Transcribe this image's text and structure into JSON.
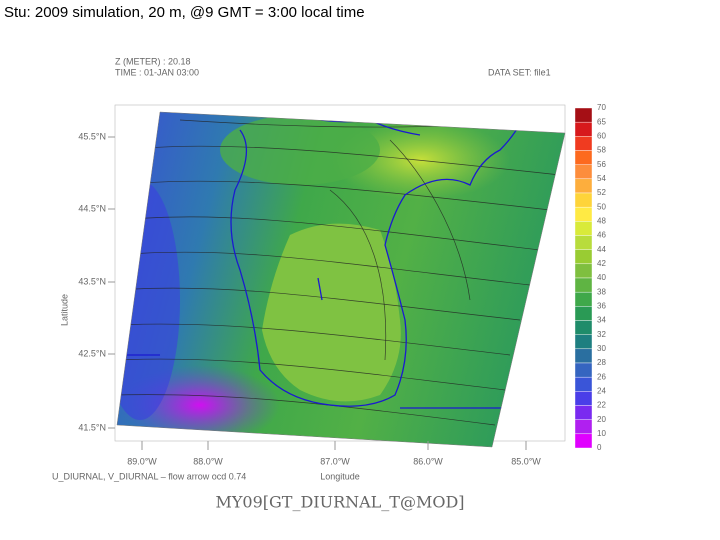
{
  "title": "Stu: 2009 simulation, 20 m, @9 GMT = 3:00 local time",
  "header": {
    "z_level": "Z (METER) : 20.18",
    "time": "TIME : 01-JAN 03:00",
    "dataset": "DATA SET: file1"
  },
  "axes": {
    "y_label": "Latitude",
    "x_label": "Longitude",
    "lat_labels": [
      "45.5°N",
      "44.5°N",
      "43.5°N",
      "42.5°N",
      "41.5°N"
    ],
    "lon_labels": [
      "89.0°W",
      "88.0°W",
      "87.0°W",
      "86.0°W",
      "85.0°W"
    ]
  },
  "colorbar": {
    "labels": [
      "70",
      "65",
      "60",
      "58",
      "56",
      "54",
      "52",
      "50",
      "48",
      "46",
      "44",
      "42",
      "40",
      "38",
      "36",
      "34",
      "32",
      "30",
      "28",
      "26",
      "24",
      "22",
      "20",
      "10",
      "0"
    ],
    "colors": [
      "#a50f15",
      "#d7191c",
      "#f03b20",
      "#fd6a1f",
      "#fd8d3c",
      "#fdae3d",
      "#fed43a",
      "#ffea44",
      "#d9ea3a",
      "#b8dc3c",
      "#99cc33",
      "#7fbf3f",
      "#5fb443",
      "#3fa84a",
      "#2a9a55",
      "#1f8c6a",
      "#1e7f80",
      "#2a6fa0",
      "#3565c0",
      "#3a55d8",
      "#4a3ee8",
      "#7a2af0",
      "#b020f0",
      "#e000ff"
    ]
  },
  "footer": {
    "vector_note": "U_DIURNAL, V_DIURNAL – flow arrow ocd 0.74",
    "variable": "MY09[GT_DIURNAL_T@MOD]"
  }
}
